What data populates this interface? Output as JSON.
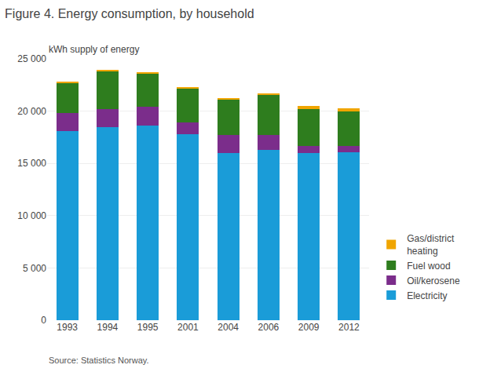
{
  "chart_data": {
    "type": "bar",
    "stacked": true,
    "title": "Figure 4. Energy consumption, by household",
    "ylabel": "kWh supply of energy",
    "annotations": [
      "Source: Statistics Norway."
    ],
    "categories": [
      "1993",
      "1994",
      "1995",
      "2001",
      "2004",
      "2006",
      "2009",
      "2012"
    ],
    "series": [
      {
        "name": "Electricity",
        "color": "#1a9cd8",
        "values": [
          18100,
          18500,
          18600,
          17800,
          16000,
          16300,
          16000,
          16100
        ]
      },
      {
        "name": "Oil/kerosene",
        "color": "#7b2d8b",
        "values": [
          1700,
          1700,
          1800,
          1100,
          1700,
          1400,
          700,
          600
        ]
      },
      {
        "name": "Fuel wood",
        "color": "#2e7d1e",
        "values": [
          2900,
          3600,
          3200,
          3300,
          3400,
          3900,
          3500,
          3300
        ]
      },
      {
        "name": "Gas/district\nheating",
        "color": "#f0a500",
        "values": [
          100,
          100,
          100,
          100,
          100,
          100,
          300,
          300
        ]
      }
    ],
    "ylim": [
      0,
      25000
    ],
    "yticks": [
      0,
      {
        "value": 5000,
        "label": "5 000"
      },
      {
        "value": 10000,
        "label": "10 000"
      },
      {
        "value": 15000,
        "label": "15 000"
      },
      {
        "value": 20000,
        "label": "20 000"
      },
      {
        "value": 25000,
        "label": "25 000"
      }
    ],
    "grid": true,
    "legend": "right"
  }
}
